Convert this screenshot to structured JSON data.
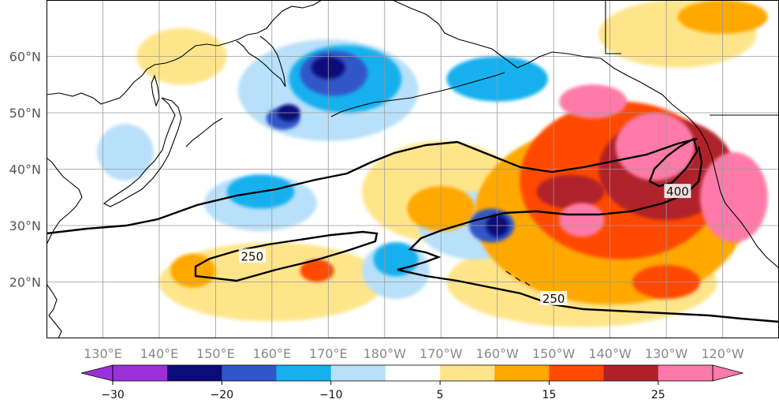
{
  "map": {
    "region": "North Pacific",
    "lat_labels": [
      {
        "text": "60°N",
        "lat": 60
      },
      {
        "text": "50°N",
        "lat": 50
      },
      {
        "text": "40°N",
        "lat": 40
      },
      {
        "text": "30°N",
        "lat": 30
      },
      {
        "text": "20°N",
        "lat": 20
      }
    ],
    "lon_labels": [
      {
        "text": "130°E",
        "lon": 130
      },
      {
        "text": "140°E",
        "lon": 140
      },
      {
        "text": "150°E",
        "lon": 150
      },
      {
        "text": "160°E",
        "lon": 160
      },
      {
        "text": "170°E",
        "lon": 170
      },
      {
        "text": "180°W",
        "lon": 180
      },
      {
        "text": "170°W",
        "lon": 190
      },
      {
        "text": "160°W",
        "lon": 200
      },
      {
        "text": "150°W",
        "lon": 210
      },
      {
        "text": "140°W",
        "lon": 220
      },
      {
        "text": "130°W",
        "lon": 230
      },
      {
        "text": "120°W",
        "lon": 240
      }
    ],
    "extent": {
      "lon_min": 120,
      "lon_max": 250,
      "lat_min": 10,
      "lat_max": 70
    },
    "contour_labels": [
      {
        "text": "250",
        "lon": 156.5,
        "lat": 24.5
      },
      {
        "text": "250",
        "lon": 210,
        "lat": 17
      },
      {
        "text": "400",
        "lon": 232,
        "lat": 36
      }
    ],
    "anomaly_fields": [
      {
        "level": 25,
        "lon": 228,
        "lat": 44,
        "rx": 7,
        "ry": 6
      },
      {
        "level": 25,
        "lon": 242,
        "lat": 35,
        "rx": 6,
        "ry": 8
      },
      {
        "level": 25,
        "lon": 217,
        "lat": 52,
        "rx": 6,
        "ry": 3
      },
      {
        "level": 25,
        "lon": 215,
        "lat": 31,
        "rx": 4,
        "ry": 3
      },
      {
        "level": 20,
        "lon": 230,
        "lat": 40,
        "rx": 12,
        "ry": 9
      },
      {
        "level": 20,
        "lon": 213,
        "lat": 36,
        "rx": 6,
        "ry": 3
      },
      {
        "level": 15,
        "lon": 222,
        "lat": 38,
        "rx": 18,
        "ry": 14
      },
      {
        "level": 15,
        "lon": 168,
        "lat": 22,
        "rx": 3,
        "ry": 2
      },
      {
        "level": 15,
        "lon": 230,
        "lat": 20,
        "rx": 6,
        "ry": 3
      },
      {
        "level": 10,
        "lon": 220,
        "lat": 32,
        "rx": 24,
        "ry": 16
      },
      {
        "level": 10,
        "lon": 190,
        "lat": 33,
        "rx": 6,
        "ry": 4
      },
      {
        "level": 10,
        "lon": 146,
        "lat": 22,
        "rx": 4,
        "ry": 3
      },
      {
        "level": 10,
        "lon": 240,
        "lat": 67,
        "rx": 8,
        "ry": 3
      },
      {
        "level": 5,
        "lon": 190,
        "lat": 36,
        "rx": 14,
        "ry": 9
      },
      {
        "level": 5,
        "lon": 160,
        "lat": 20,
        "rx": 20,
        "ry": 7
      },
      {
        "level": 5,
        "lon": 215,
        "lat": 20,
        "rx": 24,
        "ry": 8
      },
      {
        "level": 5,
        "lon": 144,
        "lat": 60,
        "rx": 8,
        "ry": 5
      },
      {
        "level": 5,
        "lon": 232,
        "lat": 64,
        "rx": 14,
        "ry": 6
      },
      {
        "level": -5,
        "lon": 170,
        "lat": 54,
        "rx": 16,
        "ry": 9
      },
      {
        "level": -5,
        "lon": 158,
        "lat": 34,
        "rx": 10,
        "ry": 5
      },
      {
        "level": -5,
        "lon": 196,
        "lat": 30,
        "rx": 10,
        "ry": 6
      },
      {
        "level": -5,
        "lon": 134,
        "lat": 43,
        "rx": 5,
        "ry": 5
      },
      {
        "level": -5,
        "lon": 182,
        "lat": 22,
        "rx": 6,
        "ry": 5
      },
      {
        "level": -10,
        "lon": 173,
        "lat": 56,
        "rx": 10,
        "ry": 6
      },
      {
        "level": -10,
        "lon": 158,
        "lat": 36,
        "rx": 6,
        "ry": 3
      },
      {
        "level": -10,
        "lon": 200,
        "lat": 56,
        "rx": 9,
        "ry": 4
      },
      {
        "level": -10,
        "lon": 182,
        "lat": 24,
        "rx": 4,
        "ry": 3
      },
      {
        "level": -15,
        "lon": 171,
        "lat": 57,
        "rx": 6,
        "ry": 4
      },
      {
        "level": -15,
        "lon": 199,
        "lat": 30,
        "rx": 4,
        "ry": 3
      },
      {
        "level": -15,
        "lon": 162,
        "lat": 49,
        "rx": 3,
        "ry": 2
      },
      {
        "level": -20,
        "lon": 170,
        "lat": 58,
        "rx": 3,
        "ry": 2
      },
      {
        "level": -20,
        "lon": 200,
        "lat": 30,
        "rx": 2,
        "ry": 2
      },
      {
        "level": -20,
        "lon": 163,
        "lat": 50,
        "rx": 2,
        "ry": 1.5
      }
    ]
  },
  "colorbar": {
    "levels": [
      -30,
      -25,
      -20,
      -15,
      -10,
      -5,
      5,
      10,
      15,
      20,
      25,
      30
    ],
    "colors": [
      "#9b30d8",
      "#0b0b7a",
      "#3156c8",
      "#17b0ee",
      "#b8e0fa",
      "#ffffff",
      "#ffe58a",
      "#ffa800",
      "#ff4a00",
      "#b0202a",
      "#ff7aa8"
    ],
    "tick_labels": [
      {
        "text": "−30",
        "value": -30
      },
      {
        "text": "−20",
        "value": -20
      },
      {
        "text": "−10",
        "value": -10
      },
      {
        "text": "5",
        "value": 5
      },
      {
        "text": "15",
        "value": 15
      },
      {
        "text": "25",
        "value": 25
      }
    ],
    "extend": "both"
  }
}
